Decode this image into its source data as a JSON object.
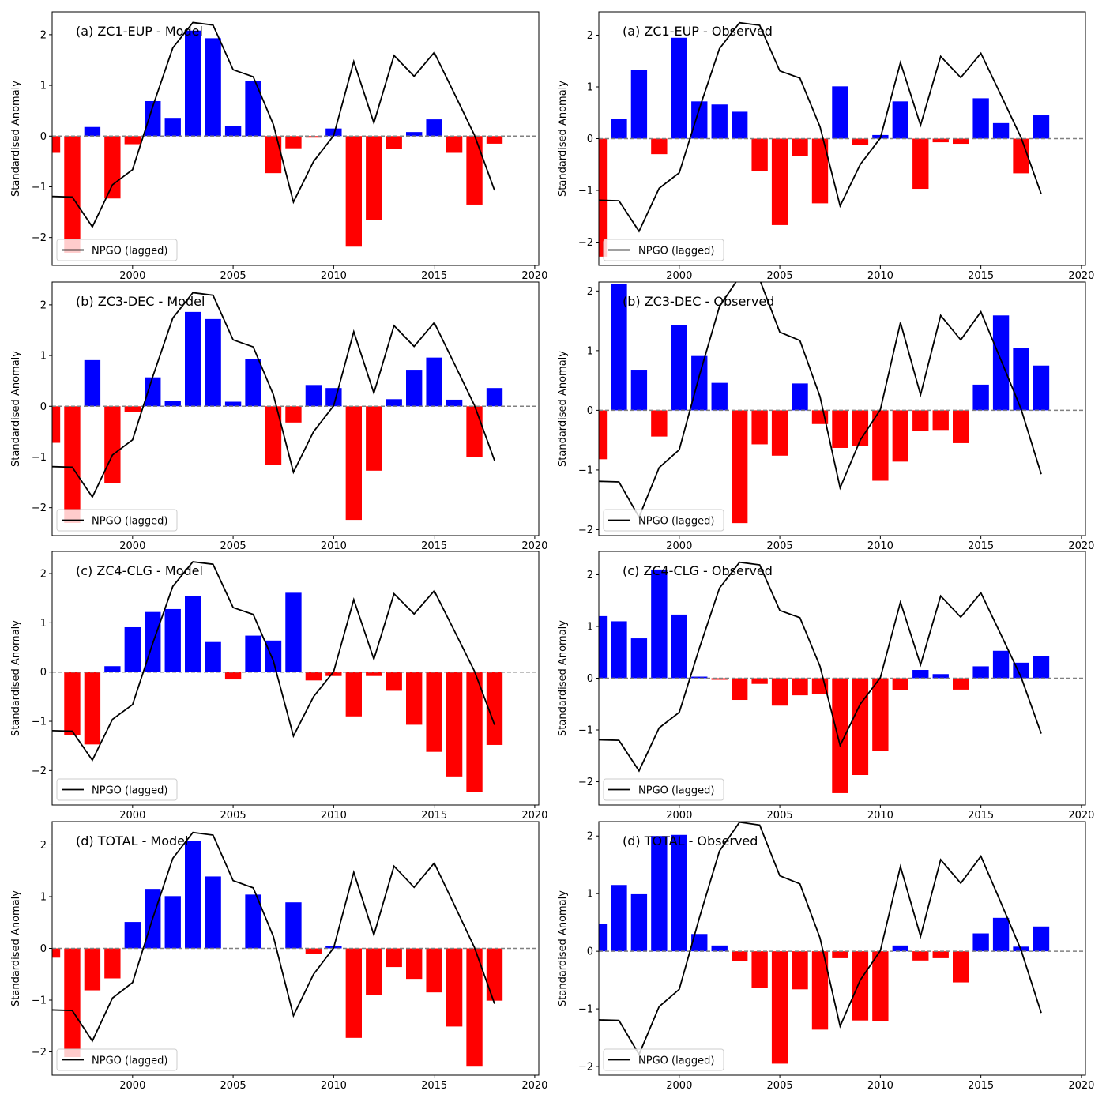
{
  "colors": {
    "positive": "#0000ff",
    "negative": "#ff0000",
    "line": "#000000",
    "zero_line": "#808080"
  },
  "chart_data": [
    {
      "type": "bar",
      "title": "(a) ZC1-EUP - Model",
      "ylabel": "Standardised Anomaly",
      "xlabel": "",
      "xlim": [
        1996,
        2020.2
      ],
      "ylim": [
        -2.55,
        2.45
      ],
      "xticks": [
        "2000",
        "2005",
        "2010",
        "2015",
        "2020"
      ],
      "yticks": [
        "−2",
        "−1",
        "0",
        "1",
        "2"
      ],
      "legend": "NPGO (lagged)",
      "legend_position": "lower-left",
      "x": [
        1996,
        1997,
        1998,
        1999,
        2000,
        2001,
        2002,
        2003,
        2004,
        2005,
        2006,
        2007,
        2008,
        2009,
        2010,
        2011,
        2012,
        2013,
        2014,
        2015,
        2016,
        2017,
        2018
      ],
      "values": [
        -0.33,
        -2.3,
        0.18,
        -1.23,
        -0.16,
        0.69,
        0.36,
        2.08,
        1.93,
        0.2,
        1.08,
        -0.73,
        -0.24,
        -0.03,
        0.15,
        -2.18,
        -1.66,
        -0.25,
        0.08,
        0.33,
        -0.33,
        -1.35,
        -0.15
      ],
      "series": [
        {
          "name": "NPGO (lagged)",
          "x": [
            1996,
            1997,
            1998,
            1999,
            2000,
            2001,
            2002,
            2003,
            2004,
            2005,
            2006,
            2007,
            2008,
            2009,
            2010,
            2011,
            2012,
            2013,
            2014,
            2015,
            2016,
            2017,
            2018
          ],
          "values": [
            -1.19,
            -1.2,
            -1.79,
            -0.96,
            -0.66,
            0.58,
            1.74,
            2.24,
            2.19,
            1.31,
            1.17,
            0.23,
            -1.3,
            -0.5,
            0.01,
            1.47,
            0.26,
            1.59,
            1.18,
            1.65,
            0.84,
            0.02,
            -1.07
          ]
        }
      ]
    },
    {
      "type": "bar",
      "title": "(a) ZC1-EUP - Observed",
      "ylabel": "Standardised Anomaly",
      "xlabel": "",
      "xlim": [
        1996,
        2020.2
      ],
      "ylim": [
        -2.45,
        2.45
      ],
      "xticks": [
        "2000",
        "2005",
        "2010",
        "2015",
        "2020"
      ],
      "yticks": [
        "−2",
        "−1",
        "0",
        "1",
        "2"
      ],
      "legend": "NPGO (lagged)",
      "legend_position": "lower-left",
      "x": [
        1996,
        1997,
        1998,
        1999,
        2000,
        2001,
        2002,
        2003,
        2004,
        2005,
        2006,
        2007,
        2008,
        2009,
        2010,
        2011,
        2012,
        2013,
        2014,
        2015,
        2016,
        2017,
        2018
      ],
      "values": [
        -2.28,
        0.38,
        1.33,
        -0.3,
        1.95,
        0.72,
        0.66,
        0.52,
        -0.63,
        -1.67,
        -0.33,
        -1.25,
        1.01,
        -0.12,
        0.07,
        0.72,
        -0.97,
        -0.07,
        -0.1,
        0.78,
        0.3,
        -0.67,
        0.45
      ],
      "series": [
        {
          "name": "NPGO (lagged)",
          "x": [
            1996,
            1997,
            1998,
            1999,
            2000,
            2001,
            2002,
            2003,
            2004,
            2005,
            2006,
            2007,
            2008,
            2009,
            2010,
            2011,
            2012,
            2013,
            2014,
            2015,
            2016,
            2017,
            2018
          ],
          "values": [
            -1.19,
            -1.2,
            -1.79,
            -0.96,
            -0.66,
            0.58,
            1.74,
            2.24,
            2.19,
            1.31,
            1.17,
            0.23,
            -1.3,
            -0.5,
            0.01,
            1.47,
            0.26,
            1.59,
            1.18,
            1.65,
            0.84,
            0.02,
            -1.07
          ]
        }
      ]
    },
    {
      "type": "bar",
      "title": "(b) ZC3-DEC - Model",
      "ylabel": "Standardised Anomaly",
      "xlabel": "",
      "xlim": [
        1996,
        2020.2
      ],
      "ylim": [
        -2.55,
        2.45
      ],
      "xticks": [
        "2000",
        "2005",
        "2010",
        "2015",
        "2020"
      ],
      "yticks": [
        "−2",
        "−1",
        "0",
        "1",
        "2"
      ],
      "legend": "NPGO (lagged)",
      "legend_position": "lower-left",
      "x": [
        1996,
        1997,
        1998,
        1999,
        2000,
        2001,
        2002,
        2003,
        2004,
        2005,
        2006,
        2007,
        2008,
        2009,
        2010,
        2011,
        2012,
        2013,
        2014,
        2015,
        2016,
        2017,
        2018
      ],
      "values": [
        -0.72,
        -2.3,
        0.91,
        -1.52,
        -0.12,
        0.57,
        0.1,
        1.86,
        1.72,
        0.09,
        0.93,
        -1.15,
        -0.32,
        0.42,
        0.36,
        -2.24,
        -1.27,
        0.14,
        0.72,
        0.96,
        0.13,
        -1.0,
        0.36
      ],
      "series": [
        {
          "name": "NPGO (lagged)",
          "x": [
            1996,
            1997,
            1998,
            1999,
            2000,
            2001,
            2002,
            2003,
            2004,
            2005,
            2006,
            2007,
            2008,
            2009,
            2010,
            2011,
            2012,
            2013,
            2014,
            2015,
            2016,
            2017,
            2018
          ],
          "values": [
            -1.19,
            -1.2,
            -1.79,
            -0.96,
            -0.66,
            0.58,
            1.74,
            2.24,
            2.19,
            1.31,
            1.17,
            0.23,
            -1.3,
            -0.5,
            0.01,
            1.47,
            0.26,
            1.59,
            1.18,
            1.65,
            0.84,
            0.02,
            -1.07
          ]
        }
      ]
    },
    {
      "type": "bar",
      "title": "(b) ZC3-DEC - Observed",
      "ylabel": "Standardised Anomaly",
      "xlabel": "",
      "xlim": [
        1996,
        2020.2
      ],
      "ylim": [
        -2.1,
        2.15
      ],
      "xticks": [
        "2000",
        "2005",
        "2010",
        "2015",
        "2020"
      ],
      "yticks": [
        "−2",
        "−1",
        "0",
        "1",
        "2"
      ],
      "legend": "NPGO (lagged)",
      "legend_position": "lower-left",
      "x": [
        1996,
        1997,
        1998,
        1999,
        2000,
        2001,
        2002,
        2003,
        2004,
        2005,
        2006,
        2007,
        2008,
        2009,
        2010,
        2011,
        2012,
        2013,
        2014,
        2015,
        2016,
        2017,
        2018
      ],
      "values": [
        -0.82,
        2.12,
        0.68,
        -0.44,
        1.43,
        0.91,
        0.46,
        -1.89,
        -0.57,
        -0.76,
        0.45,
        -0.23,
        -0.63,
        -0.6,
        -1.18,
        -0.86,
        -0.35,
        -0.33,
        -0.55,
        0.43,
        1.59,
        1.05,
        0.75
      ],
      "series": [
        {
          "name": "NPGO (lagged)",
          "x": [
            1996,
            1997,
            1998,
            1999,
            2000,
            2001,
            2002,
            2003,
            2004,
            2005,
            2006,
            2007,
            2008,
            2009,
            2010,
            2011,
            2012,
            2013,
            2014,
            2015,
            2016,
            2017,
            2018
          ],
          "values": [
            -1.19,
            -1.2,
            -1.79,
            -0.96,
            -0.66,
            0.58,
            1.74,
            2.24,
            2.19,
            1.31,
            1.17,
            0.23,
            -1.3,
            -0.5,
            0.01,
            1.47,
            0.26,
            1.59,
            1.18,
            1.65,
            0.84,
            0.02,
            -1.07
          ]
        }
      ]
    },
    {
      "type": "bar",
      "title": "(c) ZC4-CLG - Model",
      "ylabel": "Standardised Anomaly",
      "xlabel": "",
      "xlim": [
        1996,
        2020.2
      ],
      "ylim": [
        -2.7,
        2.45
      ],
      "xticks": [
        "2000",
        "2005",
        "2010",
        "2015",
        "2020"
      ],
      "yticks": [
        "−2",
        "−1",
        "0",
        "1",
        "2"
      ],
      "legend": "NPGO (lagged)",
      "legend_position": "lower-left",
      "x": [
        1996,
        1997,
        1998,
        1999,
        2000,
        2001,
        2002,
        2003,
        2004,
        2005,
        2006,
        2007,
        2008,
        2009,
        2010,
        2011,
        2012,
        2013,
        2014,
        2015,
        2016,
        2017,
        2018
      ],
      "values": [
        0.0,
        -1.28,
        -1.47,
        0.12,
        0.91,
        1.22,
        1.28,
        1.55,
        0.61,
        -0.15,
        0.74,
        0.64,
        1.61,
        -0.17,
        -0.08,
        -0.9,
        -0.08,
        -0.38,
        -1.07,
        -1.62,
        -2.12,
        -2.44,
        -1.48
      ],
      "series": [
        {
          "name": "NPGO (lagged)",
          "x": [
            1996,
            1997,
            1998,
            1999,
            2000,
            2001,
            2002,
            2003,
            2004,
            2005,
            2006,
            2007,
            2008,
            2009,
            2010,
            2011,
            2012,
            2013,
            2014,
            2015,
            2016,
            2017,
            2018
          ],
          "values": [
            -1.19,
            -1.2,
            -1.79,
            -0.96,
            -0.66,
            0.58,
            1.74,
            2.24,
            2.19,
            1.31,
            1.17,
            0.23,
            -1.3,
            -0.5,
            0.01,
            1.47,
            0.26,
            1.59,
            1.18,
            1.65,
            0.84,
            0.02,
            -1.07
          ]
        }
      ]
    },
    {
      "type": "bar",
      "title": "(c) ZC4-CLG - Observed",
      "ylabel": "Standardised Anomaly",
      "xlabel": "",
      "xlim": [
        1996,
        2020.2
      ],
      "ylim": [
        -2.45,
        2.45
      ],
      "xticks": [
        "2000",
        "2005",
        "2010",
        "2015",
        "2020"
      ],
      "yticks": [
        "−2",
        "−1",
        "0",
        "1",
        "2"
      ],
      "legend": "NPGO (lagged)",
      "legend_position": "lower-left",
      "x": [
        1996,
        1997,
        1998,
        1999,
        2000,
        2001,
        2002,
        2003,
        2004,
        2005,
        2006,
        2007,
        2008,
        2009,
        2010,
        2011,
        2012,
        2013,
        2014,
        2015,
        2016,
        2017,
        2018
      ],
      "values": [
        1.2,
        1.1,
        0.77,
        2.1,
        1.23,
        0.03,
        -0.03,
        -0.42,
        -0.11,
        -0.53,
        -0.33,
        -0.3,
        -2.22,
        -1.87,
        -1.41,
        -0.23,
        0.16,
        0.08,
        -0.22,
        0.23,
        0.53,
        0.3,
        0.43
      ],
      "series": [
        {
          "name": "NPGO (lagged)",
          "x": [
            1996,
            1997,
            1998,
            1999,
            2000,
            2001,
            2002,
            2003,
            2004,
            2005,
            2006,
            2007,
            2008,
            2009,
            2010,
            2011,
            2012,
            2013,
            2014,
            2015,
            2016,
            2017,
            2018
          ],
          "values": [
            -1.19,
            -1.2,
            -1.79,
            -0.96,
            -0.66,
            0.58,
            1.74,
            2.24,
            2.19,
            1.31,
            1.17,
            0.23,
            -1.3,
            -0.5,
            0.01,
            1.47,
            0.26,
            1.59,
            1.18,
            1.65,
            0.84,
            0.02,
            -1.07
          ]
        }
      ]
    },
    {
      "type": "bar",
      "title": "(d) TOTAL - Model",
      "ylabel": "Standardised Anomaly",
      "xlabel": "",
      "xlim": [
        1996,
        2020.2
      ],
      "ylim": [
        -2.45,
        2.45
      ],
      "xticks": [
        "2000",
        "2005",
        "2010",
        "2015",
        "2020"
      ],
      "yticks": [
        "−2",
        "−1",
        "0",
        "1",
        "2"
      ],
      "legend": "NPGO (lagged)",
      "legend_position": "lower-left",
      "x": [
        1996,
        1997,
        1998,
        1999,
        2000,
        2001,
        2002,
        2003,
        2004,
        2005,
        2006,
        2007,
        2008,
        2009,
        2010,
        2011,
        2012,
        2013,
        2014,
        2015,
        2016,
        2017,
        2018
      ],
      "values": [
        -0.18,
        -2.1,
        -0.81,
        -0.58,
        0.51,
        1.15,
        1.01,
        2.07,
        1.39,
        0.0,
        1.04,
        0.0,
        0.89,
        -0.1,
        0.04,
        -1.73,
        -0.9,
        -0.36,
        -0.59,
        -0.85,
        -1.51,
        -2.27,
        -1.01
      ],
      "series": [
        {
          "name": "NPGO (lagged)",
          "x": [
            1996,
            1997,
            1998,
            1999,
            2000,
            2001,
            2002,
            2003,
            2004,
            2005,
            2006,
            2007,
            2008,
            2009,
            2010,
            2011,
            2012,
            2013,
            2014,
            2015,
            2016,
            2017,
            2018
          ],
          "values": [
            -1.19,
            -1.2,
            -1.79,
            -0.96,
            -0.66,
            0.58,
            1.74,
            2.24,
            2.19,
            1.31,
            1.17,
            0.23,
            -1.3,
            -0.5,
            0.01,
            1.47,
            0.26,
            1.59,
            1.18,
            1.65,
            0.84,
            0.02,
            -1.07
          ]
        }
      ]
    },
    {
      "type": "bar",
      "title": "(d) TOTAL - Observed",
      "ylabel": "Standardised Anomaly",
      "xlabel": "",
      "xlim": [
        1996,
        2020.2
      ],
      "ylim": [
        -2.15,
        2.25
      ],
      "xticks": [
        "2000",
        "2005",
        "2010",
        "2015",
        "2020"
      ],
      "yticks": [
        "−2",
        "−1",
        "0",
        "1",
        "2"
      ],
      "legend": "NPGO (lagged)",
      "legend_position": "lower-left",
      "x": [
        1996,
        1997,
        1998,
        1999,
        2000,
        2001,
        2002,
        2003,
        2004,
        2005,
        2006,
        2007,
        2008,
        2009,
        2010,
        2011,
        2012,
        2013,
        2014,
        2015,
        2016,
        2017,
        2018
      ],
      "values": [
        0.47,
        1.15,
        0.99,
        2.0,
        2.02,
        0.3,
        0.1,
        -0.17,
        -0.64,
        -1.95,
        -0.66,
        -1.36,
        -0.12,
        -1.2,
        -1.21,
        0.1,
        -0.16,
        -0.12,
        -0.54,
        0.31,
        0.58,
        0.08,
        0.43
      ],
      "series": [
        {
          "name": "NPGO (lagged)",
          "x": [
            1996,
            1997,
            1998,
            1999,
            2000,
            2001,
            2002,
            2003,
            2004,
            2005,
            2006,
            2007,
            2008,
            2009,
            2010,
            2011,
            2012,
            2013,
            2014,
            2015,
            2016,
            2017,
            2018
          ],
          "values": [
            -1.19,
            -1.2,
            -1.79,
            -0.96,
            -0.66,
            0.58,
            1.74,
            2.24,
            2.19,
            1.31,
            1.17,
            0.23,
            -1.3,
            -0.5,
            0.01,
            1.47,
            0.26,
            1.59,
            1.18,
            1.65,
            0.84,
            0.02,
            -1.07
          ]
        }
      ]
    }
  ]
}
